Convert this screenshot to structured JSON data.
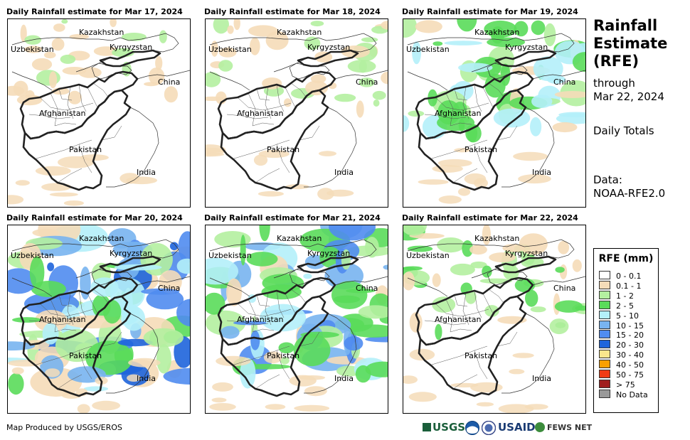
{
  "panels": [
    {
      "title": "Daily Rainfall estimate for Mar 17, 2024",
      "intensity": 0.15
    },
    {
      "title": "Daily Rainfall estimate for Mar 18, 2024",
      "intensity": 0.25
    },
    {
      "title": "Daily Rainfall estimate for Mar 19, 2024",
      "intensity": 0.55
    },
    {
      "title": "Daily Rainfall estimate for Mar 20, 2024",
      "intensity": 0.95
    },
    {
      "title": "Daily Rainfall estimate for Mar 21, 2024",
      "intensity": 0.8
    },
    {
      "title": "Daily Rainfall estimate for Mar 22, 2024",
      "intensity": 0.4
    }
  ],
  "map_labels": {
    "kazakhstan": "Kazakhstan",
    "uzbekistan": "Uzbekistan",
    "kyrgyzstan": "Kyrgyzstan",
    "china": "China",
    "afghanistan": "Afghanistan",
    "pakistan": "Pakistan",
    "india": "India"
  },
  "sidebar": {
    "title_line1": "Rainfall",
    "title_line2": "Estimate",
    "title_line3": "(RFE)",
    "through": "through",
    "date": "Mar 22, 2024",
    "totals": "Daily Totals",
    "data_label": "Data:",
    "data_source": "NOAA-RFE2.0"
  },
  "legend": {
    "title": "RFE (mm)",
    "items": [
      {
        "label": "0 - 0.1",
        "color": "#ffffff"
      },
      {
        "label": "0.1 - 1",
        "color": "#f5dcb8"
      },
      {
        "label": "1 - 2",
        "color": "#b4f0a0"
      },
      {
        "label": "2 - 5",
        "color": "#5adc5a"
      },
      {
        "label": "5 - 10",
        "color": "#b4f0fa"
      },
      {
        "label": "10 - 15",
        "color": "#78b4f0"
      },
      {
        "label": "15 - 20",
        "color": "#508cf0"
      },
      {
        "label": "20 - 30",
        "color": "#1e64dc"
      },
      {
        "label": "30 - 40",
        "color": "#fae68c"
      },
      {
        "label": "40 - 50",
        "color": "#faa000"
      },
      {
        "label": "50 - 75",
        "color": "#f03c14"
      },
      {
        "label": "> 75",
        "color": "#a01e1e"
      },
      {
        "label": "No Data",
        "color": "#999999"
      }
    ]
  },
  "credit": "Map Produced by USGS/EROS",
  "logos": {
    "usgs": "USGS",
    "usaid": "USAID",
    "fewsnet": "FEWS NET"
  }
}
